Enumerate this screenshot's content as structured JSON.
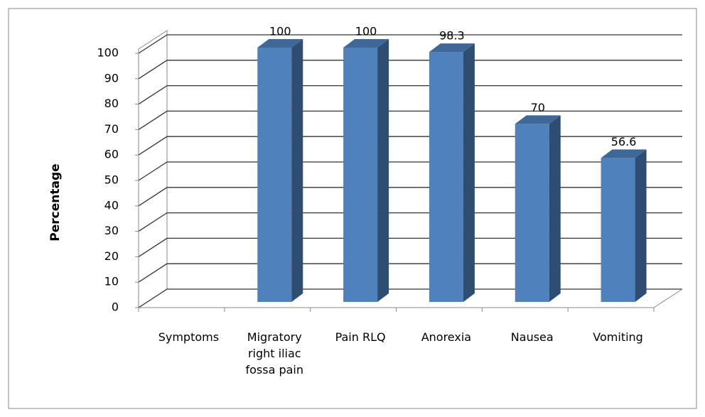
{
  "chart_data": {
    "type": "bar3d",
    "ylabel": "Percentage",
    "categories": [
      "Symptoms",
      "Migratory right iliac fossa pain",
      "Pain RLQ",
      "Anorexia",
      "Nausea",
      "Vomiting"
    ],
    "values": [
      null,
      100,
      100,
      98.3,
      70,
      56.6
    ],
    "color": "#4f81bd",
    "ylim": [
      0,
      100
    ],
    "yticks": [
      0,
      10,
      20,
      30,
      40,
      50,
      60,
      70,
      80,
      90,
      100
    ],
    "grid": true
  }
}
